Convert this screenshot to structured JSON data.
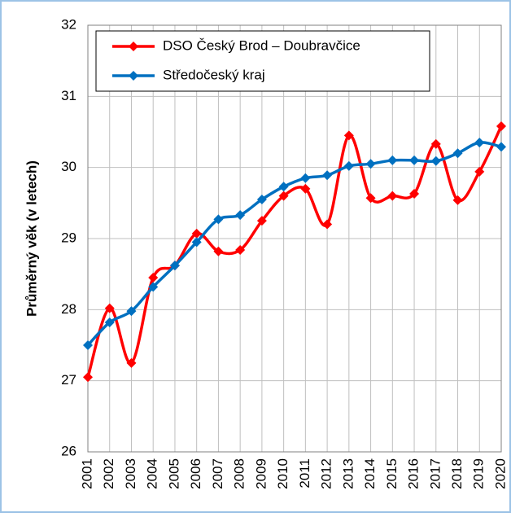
{
  "chart_data": {
    "type": "line",
    "y_label": "Průměrný věk (v letech)",
    "categories": [
      "2001",
      "2002",
      "2003",
      "2004",
      "2005",
      "2006",
      "2007",
      "2008",
      "2009",
      "2010",
      "2011",
      "2012",
      "2013",
      "2014",
      "2015",
      "2016",
      "2017",
      "2018",
      "2019",
      "2020"
    ],
    "series": [
      {
        "name": "DSO Český Brod – Doubravčice",
        "color": "#ff0000",
        "values": [
          27.05,
          28.02,
          27.25,
          28.45,
          28.62,
          29.07,
          28.82,
          28.84,
          29.25,
          29.6,
          29.7,
          29.2,
          30.45,
          29.57,
          29.6,
          29.63,
          30.33,
          29.54,
          29.94,
          30.58
        ]
      },
      {
        "name": "Středočeský kraj",
        "color": "#0070c0",
        "values": [
          27.5,
          27.82,
          27.98,
          28.32,
          28.62,
          28.95,
          29.27,
          29.33,
          29.55,
          29.73,
          29.85,
          29.89,
          30.02,
          30.05,
          30.1,
          30.1,
          30.09,
          30.2,
          30.35,
          30.29
        ]
      }
    ],
    "ylim": [
      26,
      32
    ],
    "yticks": [
      26,
      27,
      28,
      29,
      30,
      31,
      32
    ],
    "grid": true,
    "legend": "top-left"
  }
}
